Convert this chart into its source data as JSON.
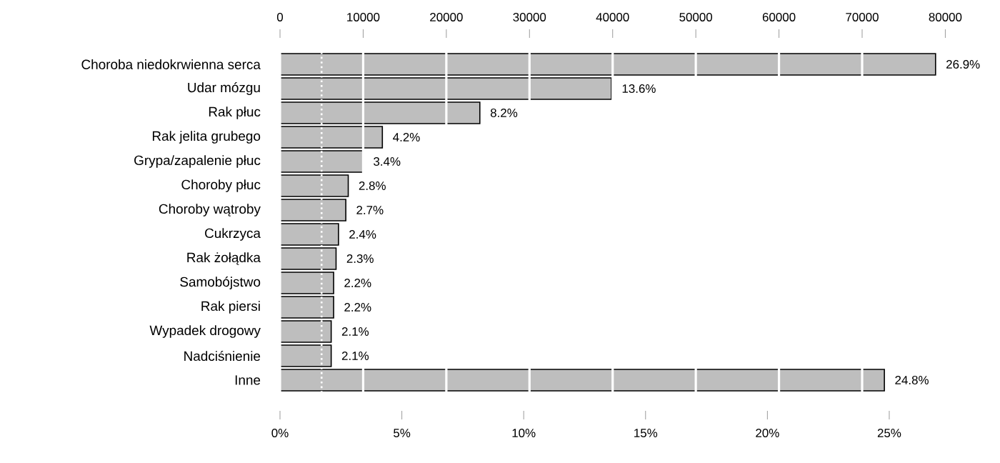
{
  "chart_data": {
    "type": "bar",
    "orientation": "horizontal",
    "categories": [
      "Choroba niedokrwienna serca",
      "Udar mózgu",
      "Rak płuc",
      "Rak jelita grubego",
      "Grypa/zapalenie płuc",
      "Choroby płuc",
      "Choroby wątroby",
      "Cukrzyca",
      "Rak żołądka",
      "Samobójstwo",
      "Rak piersi",
      "Wypadek drogowy",
      "Nadciśnienie",
      "Inne"
    ],
    "values": [
      26.9,
      13.6,
      8.2,
      4.2,
      3.4,
      2.8,
      2.7,
      2.4,
      2.3,
      2.2,
      2.2,
      2.1,
      2.1,
      24.8
    ],
    "value_labels": [
      "26.9%",
      "13.6%",
      "8.2%",
      "4.2%",
      "3.4%",
      "2.8%",
      "2.7%",
      "2.4%",
      "2.3%",
      "2.2%",
      "2.2%",
      "2.1%",
      "2.1%",
      "24.8%"
    ],
    "color": "#bebebe",
    "xlim": [
      0,
      27.3
    ],
    "xticks": [
      {
        "value": 0,
        "label": "0%"
      },
      {
        "value": 5,
        "label": "5%"
      },
      {
        "value": 10,
        "label": "10%"
      },
      {
        "value": 15,
        "label": "15%"
      },
      {
        "value": 20,
        "label": "20%"
      },
      {
        "value": 25,
        "label": "25%"
      }
    ],
    "x2lim": [
      0,
      80000
    ],
    "x2ticks": [
      0,
      10000,
      20000,
      30000,
      40000,
      50000,
      60000,
      70000,
      80000
    ],
    "grid": true,
    "ref_lines": [
      {
        "axis": "x2",
        "value": 5000,
        "color": "#ffffff",
        "line_style": "dotted"
      }
    ]
  }
}
